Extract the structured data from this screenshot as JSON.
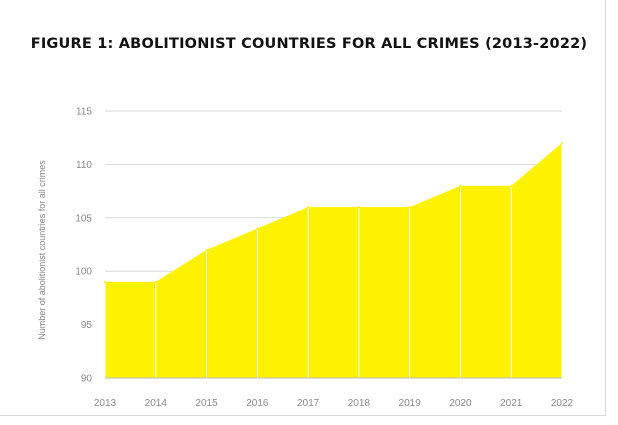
{
  "chart_data": {
    "type": "area",
    "title": "FIGURE 1:  ABOLITIONIST COUNTRIES FOR ALL CRIMES (2013-2022)",
    "ylabel": "Number of abolitionist countries for all crimes",
    "xlabel": "",
    "categories": [
      "2013",
      "2014",
      "2015",
      "2016",
      "2017",
      "2018",
      "2019",
      "2020",
      "2021",
      "2022"
    ],
    "values": [
      99,
      99,
      102,
      104,
      106,
      106,
      106,
      108,
      108,
      112
    ],
    "ylim": [
      90,
      115
    ],
    "yticks": [
      90,
      95,
      100,
      105,
      110,
      115
    ],
    "ytick_labels": [
      "90",
      "95",
      "100",
      "105",
      "110",
      "115"
    ],
    "grid": true,
    "fill_color": "#FFF200",
    "grid_color": "#d9d9d9",
    "legend": "none"
  }
}
